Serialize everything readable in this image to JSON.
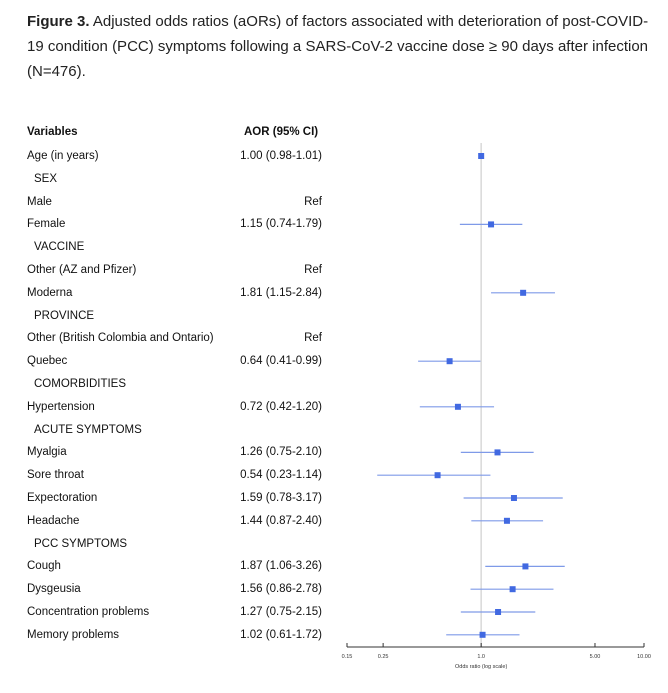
{
  "caption": {
    "label": "Figure 3.",
    "text": " Adjusted odds ratios (aORs) of factors associated with deterioration of post-COVID-19 condition (PCC) symptoms following a SARS-CoV-2 vaccine dose ≥ 90 days after infection (N=476)."
  },
  "chart_data": {
    "type": "forest",
    "columns": {
      "variables": "Variables",
      "aor": "AOR (95% CI)"
    },
    "xlabel": "Odds ratio (log scale)",
    "xscale": "log",
    "xlim": [
      0.15,
      10
    ],
    "xticks": [
      "0.15",
      "0.25",
      "1.0",
      "5.00",
      "10.00"
    ],
    "reference_line": 1.0,
    "marker_color": "#4169e1",
    "rows": [
      {
        "label": "Age (in years)",
        "aor_text": "1.00 (0.98-1.01)",
        "or": 1.0,
        "lo": 0.98,
        "hi": 1.01
      },
      {
        "label": "SEX",
        "section": true
      },
      {
        "label": "Male",
        "aor_text": "Ref"
      },
      {
        "label": "Female",
        "aor_text": "1.15 (0.74-1.79)",
        "or": 1.15,
        "lo": 0.74,
        "hi": 1.79
      },
      {
        "label": "VACCINE",
        "section": true
      },
      {
        "label": "Other (AZ and Pfizer)",
        "aor_text": "Ref"
      },
      {
        "label": "Moderna",
        "aor_text": "1.81 (1.15-2.84)",
        "or": 1.81,
        "lo": 1.15,
        "hi": 2.84
      },
      {
        "label": "PROVINCE",
        "section": true
      },
      {
        "label": "Other (British Colombia and Ontario)",
        "aor_text": "Ref"
      },
      {
        "label": "Quebec",
        "aor_text": "0.64 (0.41-0.99)",
        "or": 0.64,
        "lo": 0.41,
        "hi": 0.99
      },
      {
        "label": "COMORBIDITIES",
        "section": true
      },
      {
        "label": "Hypertension",
        "aor_text": "0.72 (0.42-1.20)",
        "or": 0.72,
        "lo": 0.42,
        "hi": 1.2
      },
      {
        "label": "ACUTE SYMPTOMS",
        "section": true
      },
      {
        "label": "Myalgia",
        "aor_text": "1.26 (0.75-2.10)",
        "or": 1.26,
        "lo": 0.75,
        "hi": 2.1
      },
      {
        "label": "Sore throat",
        "aor_text": "0.54 (0.23-1.14)",
        "or": 0.54,
        "lo": 0.23,
        "hi": 1.14
      },
      {
        "label": "Expectoration",
        "aor_text": "1.59 (0.78-3.17)",
        "or": 1.59,
        "lo": 0.78,
        "hi": 3.17
      },
      {
        "label": "Headache",
        "aor_text": "1.44 (0.87-2.40)",
        "or": 1.44,
        "lo": 0.87,
        "hi": 2.4
      },
      {
        "label": "PCC SYMPTOMS",
        "section": true
      },
      {
        "label": "Cough",
        "aor_text": "1.87 (1.06-3.26)",
        "or": 1.87,
        "lo": 1.06,
        "hi": 3.26
      },
      {
        "label": "Dysgeusia",
        "aor_text": "1.56 (0.86-2.78)",
        "or": 1.56,
        "lo": 0.86,
        "hi": 2.78
      },
      {
        "label": "Concentration problems",
        "aor_text": "1.27 (0.75-2.15)",
        "or": 1.27,
        "lo": 0.75,
        "hi": 2.15
      },
      {
        "label": "Memory problems",
        "aor_text": "1.02 (0.61-1.72)",
        "or": 1.02,
        "lo": 0.61,
        "hi": 1.72
      }
    ]
  }
}
